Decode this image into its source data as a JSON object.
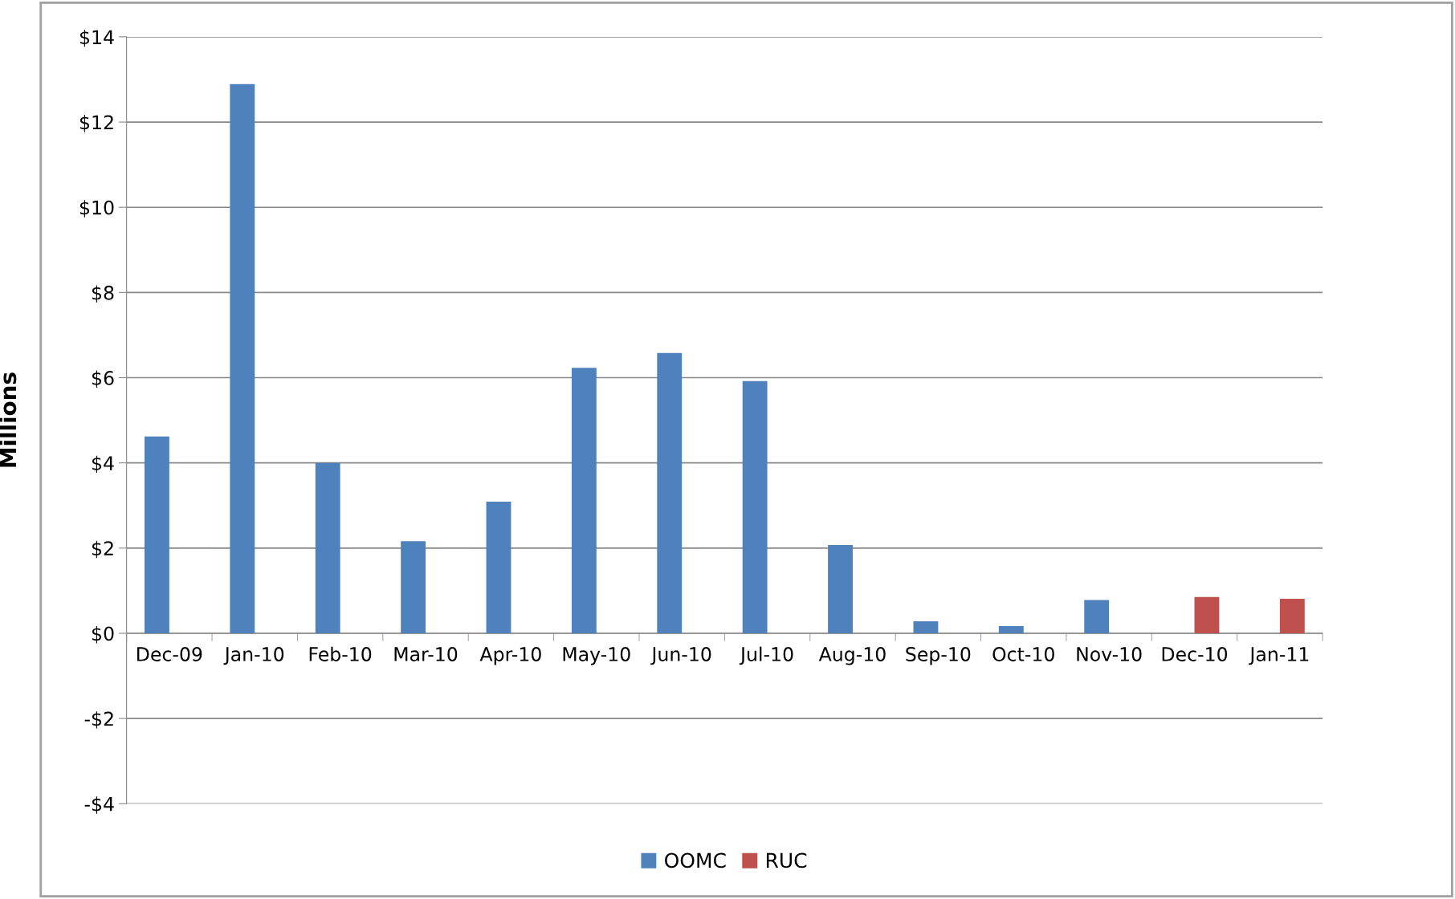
{
  "chart_data": {
    "type": "bar",
    "ylabel": "Millions",
    "categories": [
      "Dec-09",
      "Jan-10",
      "Feb-10",
      "Mar-10",
      "Apr-10",
      "May-10",
      "Jun-10",
      "Jul-10",
      "Aug-10",
      "Sep-10",
      "Oct-10",
      "Nov-10",
      "Dec-10",
      "Jan-11"
    ],
    "series": [
      {
        "name": "OOMC",
        "color": "#4f81bd",
        "values": [
          4.62,
          12.89,
          4.0,
          2.16,
          3.09,
          6.23,
          6.58,
          5.92,
          2.07,
          0.28,
          0.17,
          0.78,
          null,
          null
        ]
      },
      {
        "name": "RUC",
        "color": "#c0504d",
        "values": [
          null,
          null,
          null,
          null,
          null,
          null,
          null,
          null,
          null,
          null,
          null,
          null,
          0.85,
          0.81
        ]
      }
    ],
    "ylim": [
      -4,
      14
    ],
    "yticks": [
      {
        "value": -4,
        "label": "-$4"
      },
      {
        "value": -2,
        "label": "-$2"
      },
      {
        "value": 0,
        "label": "$0"
      },
      {
        "value": 2,
        "label": "$2"
      },
      {
        "value": 4,
        "label": "$4"
      },
      {
        "value": 6,
        "label": "$6"
      },
      {
        "value": 8,
        "label": "$8"
      },
      {
        "value": 10,
        "label": "$10"
      },
      {
        "value": 12,
        "label": "$12"
      },
      {
        "value": 14,
        "label": "$14"
      }
    ],
    "grid": "y",
    "legend": "bottom"
  }
}
